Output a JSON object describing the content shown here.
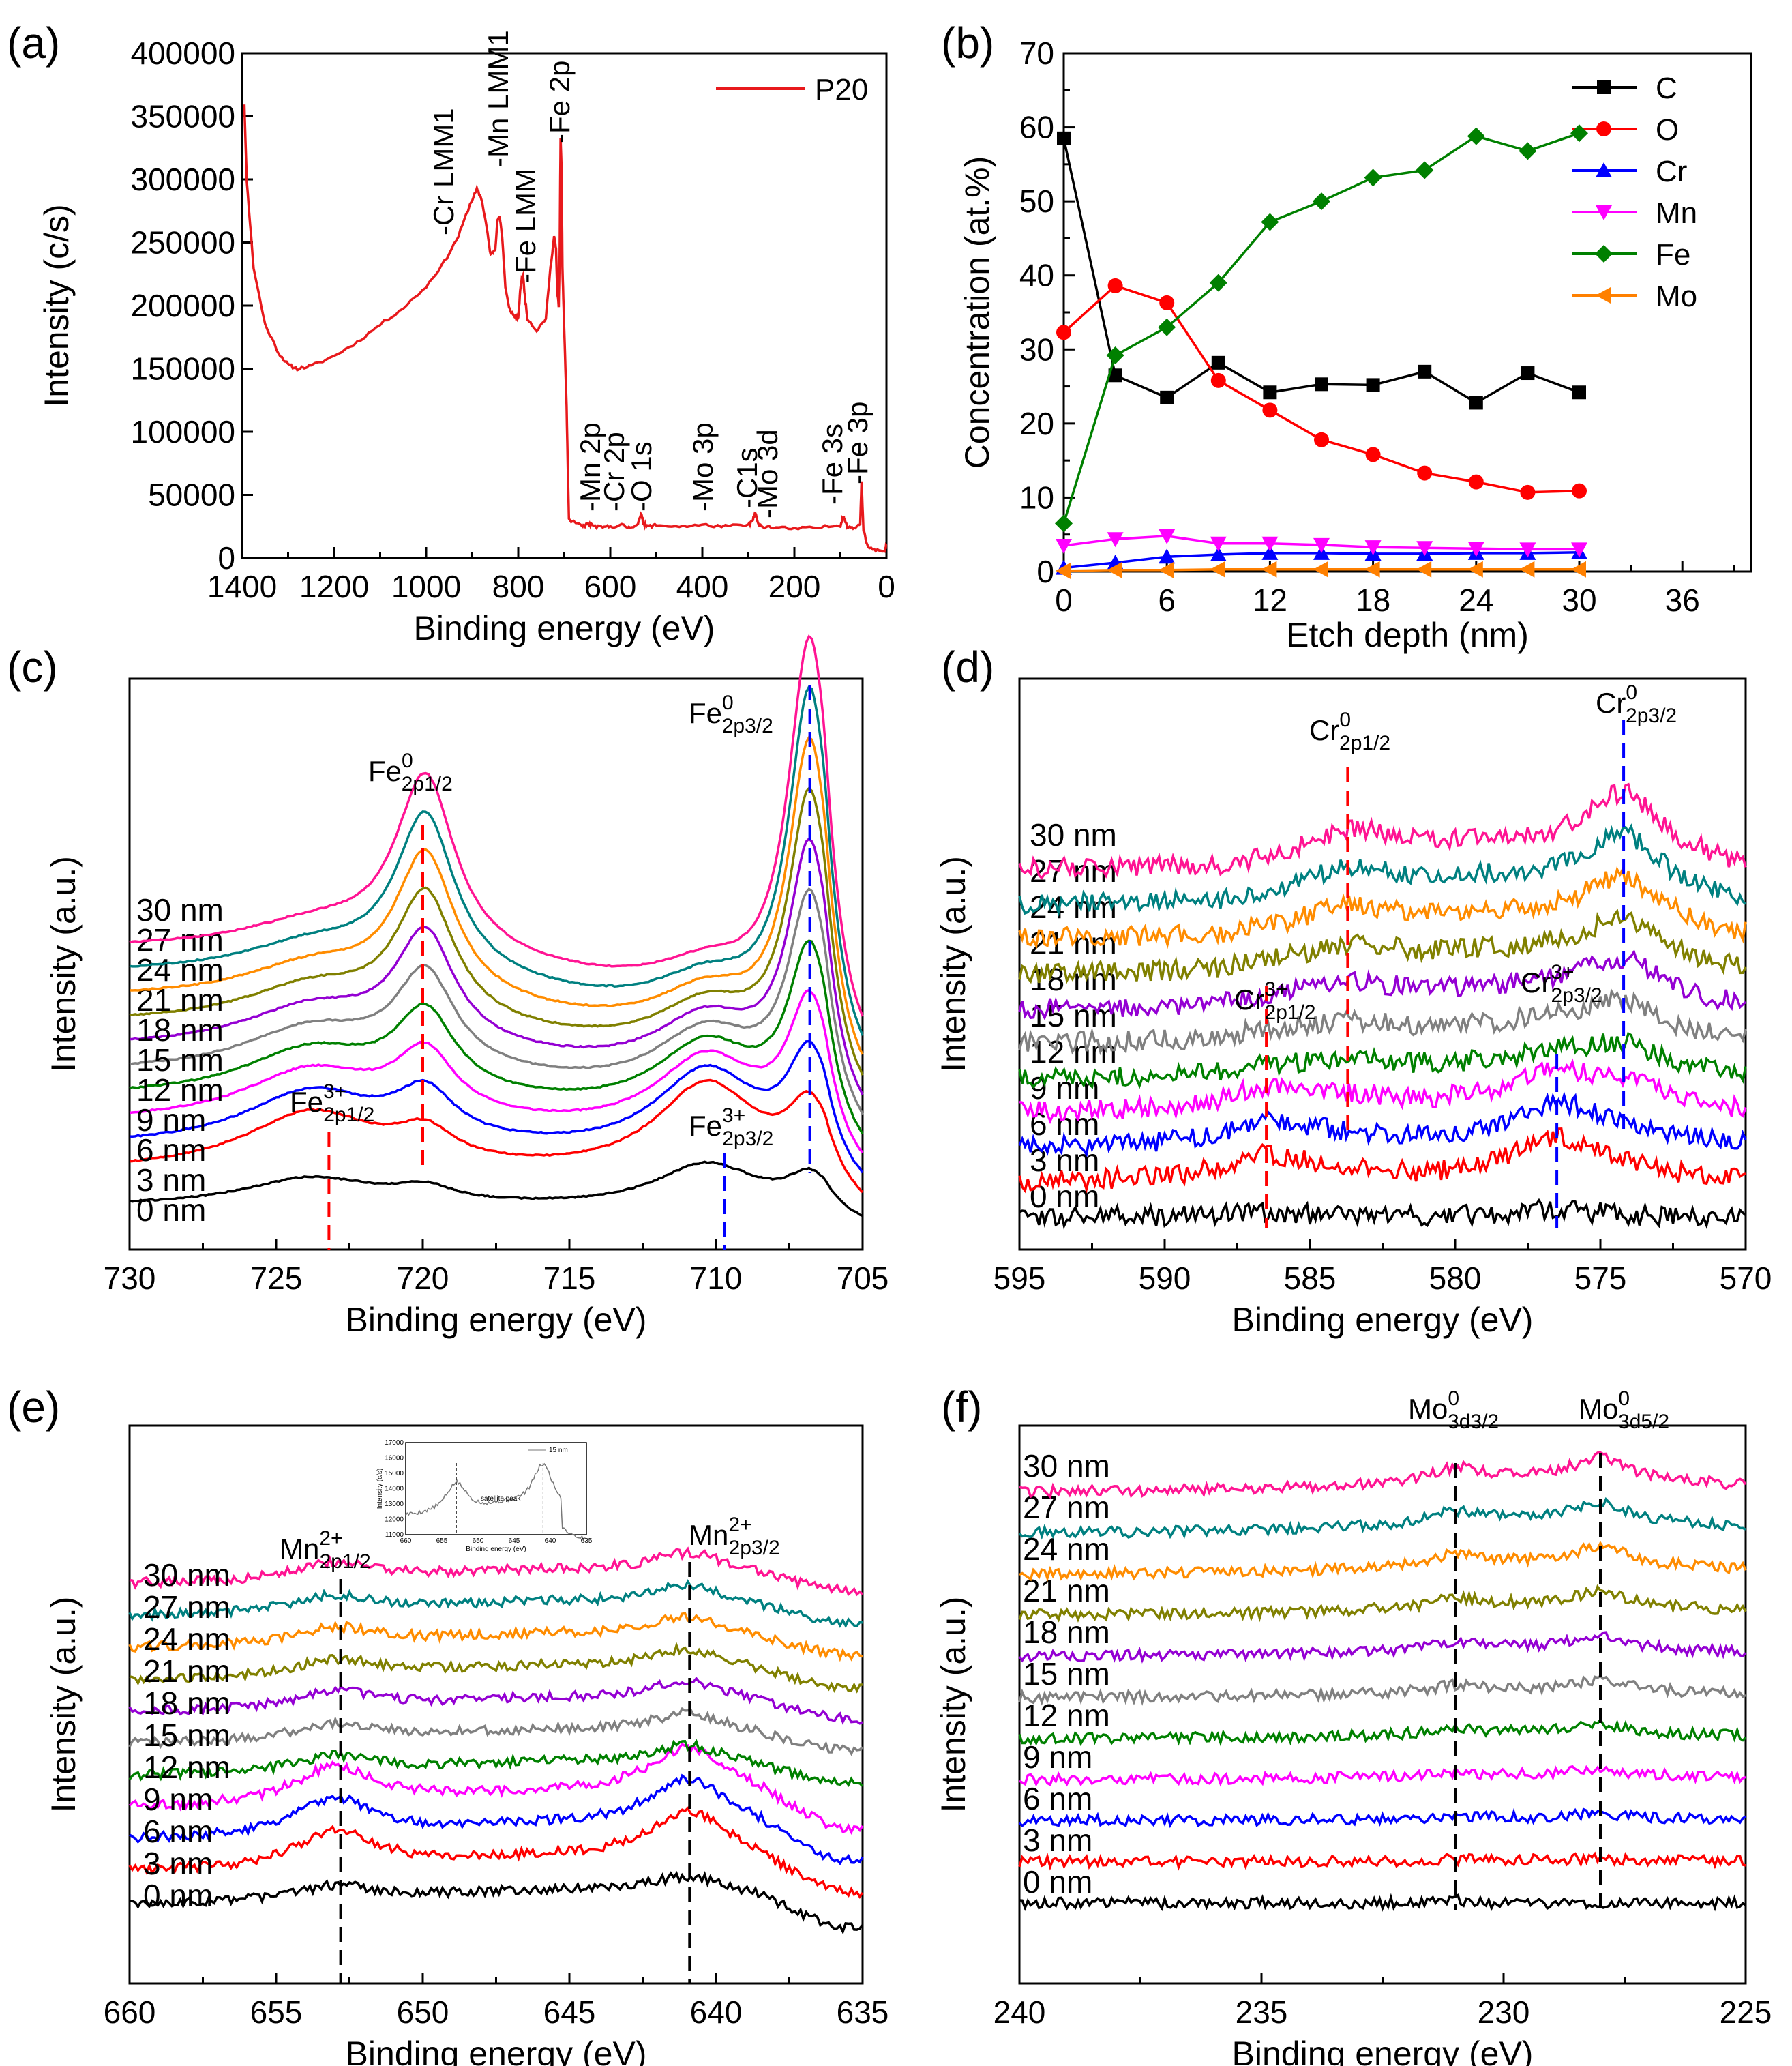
{
  "figure": {
    "description_labels": [
      "(a)",
      "(b)",
      "(c)",
      "(d)",
      "(e)",
      "(f)"
    ]
  },
  "chart_data": [
    {
      "panel": "(a)",
      "type": "line",
      "xlabel": "Binding energy (eV)",
      "ylabel": "Intensity (c/s)",
      "xlim": [
        1400,
        0
      ],
      "ylim": [
        0,
        400000
      ],
      "xticks": [
        "1400",
        "1200",
        "1000",
        "800",
        "600",
        "400",
        "200",
        "0"
      ],
      "yticks": [
        "0",
        "50000",
        "100000",
        "150000",
        "200000",
        "250000",
        "300000",
        "350000",
        "400000"
      ],
      "legend": "P20",
      "color": "#e8191c",
      "series": [
        {
          "name": "P20",
          "x": [
            1395,
            1390,
            1375,
            1350,
            1320,
            1300,
            1280,
            1250,
            1200,
            1150,
            1100,
            1050,
            1000,
            960,
            930,
            905,
            890,
            880,
            870,
            860,
            850,
            845,
            840,
            835,
            828,
            820,
            810,
            800,
            795,
            790,
            785,
            780,
            760,
            740,
            730,
            722,
            718,
            715,
            712,
            710,
            708,
            706,
            704,
            700,
            695,
            690,
            660,
            650,
            640,
            620,
            600,
            575,
            560,
            540,
            532,
            528,
            520,
            500,
            450,
            400,
            350,
            300,
            290,
            285,
            280,
            270,
            240,
            200,
            150,
            100,
            94,
            90,
            85,
            70,
            57,
            54,
            50,
            40,
            20,
            5,
            0
          ],
          "y": [
            360000,
            300000,
            230000,
            185000,
            162000,
            153000,
            150000,
            152000,
            160000,
            171000,
            185000,
            198000,
            215000,
            235000,
            255000,
            280000,
            292000,
            285000,
            265000,
            240000,
            245000,
            268000,
            270000,
            255000,
            215000,
            198000,
            192000,
            190000,
            215000,
            225000,
            205000,
            190000,
            180000,
            190000,
            230000,
            255000,
            245000,
            210000,
            200000,
            240000,
            333000,
            310000,
            230000,
            180000,
            120000,
            30000,
            25000,
            27000,
            26000,
            24000,
            25000,
            26000,
            24000,
            27000,
            35000,
            27000,
            25000,
            26000,
            25000,
            26000,
            25000,
            26000,
            30000,
            36000,
            28000,
            25000,
            24000,
            23000,
            24000,
            26000,
            33000,
            30000,
            25000,
            24000,
            28000,
            60000,
            22000,
            8000,
            6000,
            5000,
            10000
          ]
        }
      ],
      "peak_labels": [
        "Cr LMM1",
        "Mn LMM1",
        "Fe LMM",
        "Fe 2p",
        "Mn 2p",
        "Cr 2p",
        "O 1s",
        "Mo 3p",
        "C1s",
        "Mo 3d",
        "Fe 3s",
        "Fe 3p"
      ]
    },
    {
      "panel": "(b)",
      "type": "line",
      "xlabel": "Etch depth (nm)",
      "ylabel": "Concentration (at.%)",
      "xlim": [
        0,
        40
      ],
      "ylim": [
        0,
        70
      ],
      "xticks": [
        "0",
        "6",
        "12",
        "18",
        "24",
        "30",
        "36"
      ],
      "yticks": [
        "0",
        "10",
        "20",
        "30",
        "40",
        "50",
        "60",
        "70"
      ],
      "x": [
        0,
        3,
        6,
        9,
        12,
        15,
        18,
        21,
        24,
        27,
        30
      ],
      "series": [
        {
          "name": "C",
          "color": "#000000",
          "marker": "square",
          "values": [
            58.5,
            26.5,
            23.5,
            28.2,
            24.2,
            25.3,
            25.2,
            27,
            22.8,
            26.8,
            24.2
          ]
        },
        {
          "name": "O",
          "color": "#ff0000",
          "marker": "circle",
          "values": [
            32.3,
            38.6,
            36.3,
            25.8,
            21.8,
            17.8,
            15.8,
            13.3,
            12.1,
            10.7,
            10.9
          ]
        },
        {
          "name": "Cr",
          "color": "#0000ff",
          "marker": "triangle-up",
          "values": [
            0.5,
            1.2,
            2,
            2.3,
            2.5,
            2.5,
            2.4,
            2.4,
            2.5,
            2.5,
            2.6
          ]
        },
        {
          "name": "Mn",
          "color": "#ff00ff",
          "marker": "triangle-down",
          "values": [
            3.5,
            4.4,
            4.8,
            3.8,
            3.8,
            3.6,
            3.3,
            3.2,
            3.1,
            3,
            3
          ]
        },
        {
          "name": "Fe",
          "color": "#008000",
          "marker": "diamond",
          "values": [
            6.5,
            29.2,
            33,
            39,
            47.2,
            50,
            53.2,
            54.2,
            58.8,
            56.8,
            59.2
          ]
        },
        {
          "name": "Mo",
          "color": "#ff8000",
          "marker": "triangle-left",
          "values": [
            0.1,
            0.2,
            0.2,
            0.3,
            0.3,
            0.3,
            0.3,
            0.3,
            0.3,
            0.3,
            0.3
          ]
        }
      ]
    },
    {
      "panel": "(c)",
      "type": "line",
      "xlabel": "Binding energy (eV)",
      "ylabel": "Intensity (a.u.)",
      "xlim": [
        730,
        705
      ],
      "xticks": [
        "730",
        "725",
        "720",
        "715",
        "710",
        "705"
      ],
      "depths": [
        "0 nm",
        "3 nm",
        "6 nm",
        "9 nm",
        "12 nm",
        "15 nm",
        "18 nm",
        "21 nm",
        "24 nm",
        "27 nm",
        "30 nm"
      ],
      "peaks": [
        {
          "label": "Fe",
          "sup": "0",
          "sub": "2p1/2",
          "x": 720
        },
        {
          "label": "Fe",
          "sup": "0",
          "sub": "2p3/2",
          "x": 706.8
        },
        {
          "label": "Fe",
          "sup": "3+",
          "sub": "2p1/2",
          "x": 723.2
        },
        {
          "label": "Fe",
          "sup": "3+",
          "sub": "2p3/2",
          "x": 709.7
        }
      ]
    },
    {
      "panel": "(d)",
      "type": "line",
      "xlabel": "Binding energy (eV)",
      "ylabel": "Intensity (a.u.)",
      "xlim": [
        595,
        570
      ],
      "xticks": [
        "595",
        "590",
        "585",
        "580",
        "575",
        "570"
      ],
      "depths": [
        "0 nm",
        "3 nm",
        "6 nm",
        "9 nm",
        "12 nm",
        "15 nm",
        "18 nm",
        "21 nm",
        "24 nm",
        "27 nm",
        "30 nm"
      ],
      "peaks": [
        {
          "label": "Cr",
          "sup": "0",
          "sub": "2p1/2",
          "x": 583.7
        },
        {
          "label": "Cr",
          "sup": "0",
          "sub": "2p3/2",
          "x": 574.2
        },
        {
          "label": "Cr",
          "sup": "3+",
          "sub": "2p1/2",
          "x": 586.5
        },
        {
          "label": "Cr",
          "sup": "3+",
          "sub": "2p3/2",
          "x": 576.5
        }
      ]
    },
    {
      "panel": "(e)",
      "type": "line",
      "xlabel": "Binding energy (eV)",
      "ylabel": "Intensity (a.u.)",
      "xlim": [
        660,
        635
      ],
      "xticks": [
        "660",
        "655",
        "650",
        "645",
        "640",
        "635"
      ],
      "depths": [
        "0 nm",
        "3 nm",
        "6 nm",
        "9 nm",
        "12 nm",
        "15 nm",
        "18 nm",
        "21 nm",
        "24 nm",
        "27 nm",
        "30 nm"
      ],
      "peaks": [
        {
          "label": "Mn",
          "sup": "2+",
          "sub": "2p1/2",
          "x": 652.8
        },
        {
          "label": "Mn",
          "sup": "2+",
          "sub": "2p3/2",
          "x": 640.9
        }
      ],
      "inset": {
        "ylabel": "Intensity (c/s)",
        "xlabel": "Binding energy (eV)",
        "legend": "15 nm",
        "annotation": "satellite peak",
        "xticks": [
          "660",
          "655",
          "650",
          "645",
          "640",
          "635"
        ],
        "yticks": [
          "11000",
          "12000",
          "13000",
          "14000",
          "15000",
          "16000",
          "17000"
        ]
      }
    },
    {
      "panel": "(f)",
      "type": "line",
      "xlabel": "Binding energy (eV)",
      "ylabel": "Intensity (a.u.)",
      "xlim": [
        240,
        225
      ],
      "xticks": [
        "240",
        "235",
        "230",
        "225"
      ],
      "depths": [
        "0 nm",
        "3 nm",
        "6 nm",
        "9 nm",
        "12 nm",
        "15 nm",
        "18 nm",
        "21 nm",
        "24 nm",
        "27 nm",
        "30 nm"
      ],
      "peaks": [
        {
          "label": "Mo",
          "sup": "0",
          "sub": "3d3/2",
          "x": 231
        },
        {
          "label": "Mo",
          "sup": "0",
          "sub": "3d5/2",
          "x": 228
        }
      ]
    }
  ],
  "depth_colors": [
    "#000000",
    "#ff0000",
    "#0000ff",
    "#ff00ff",
    "#008000",
    "#808080",
    "#9400d3",
    "#808000",
    "#ff8c00",
    "#008080",
    "#ff1493"
  ]
}
